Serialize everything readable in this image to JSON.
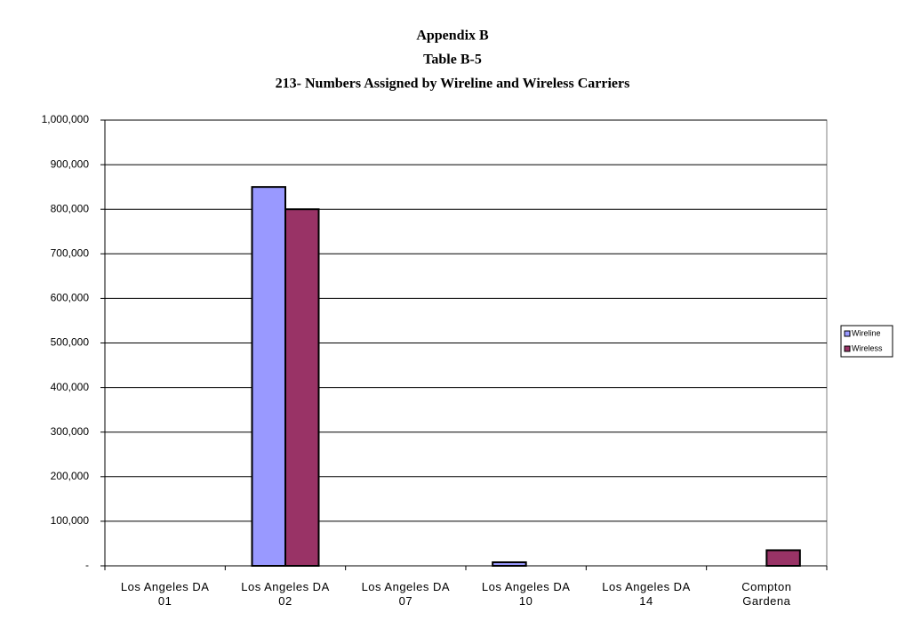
{
  "chart_data": {
    "type": "bar",
    "titles": [
      "Appendix B",
      "Table B-5",
      "213- Numbers Assigned by Wireline and Wireless Carriers"
    ],
    "categories": [
      "Los Angeles DA 01",
      "Los Angeles DA 02",
      "Los Angeles DA 07",
      "Los Angeles DA 10",
      "Los Angeles DA 14",
      "Compton Gardena"
    ],
    "series": [
      {
        "name": "Wireline",
        "color": "#9999ff",
        "values": [
          0,
          850000,
          0,
          8000,
          0,
          0
        ]
      },
      {
        "name": "Wireless",
        "color": "#993366",
        "values": [
          0,
          800000,
          0,
          0,
          0,
          35000
        ]
      }
    ],
    "ylim": [
      0,
      1000000
    ],
    "yticks": [
      {
        "value": 0,
        "label": "-"
      },
      {
        "value": 100000,
        "label": "100,000"
      },
      {
        "value": 200000,
        "label": "200,000"
      },
      {
        "value": 300000,
        "label": "300,000"
      },
      {
        "value": 400000,
        "label": "400,000"
      },
      {
        "value": 500000,
        "label": "500,000"
      },
      {
        "value": 600000,
        "label": "600,000"
      },
      {
        "value": 700000,
        "label": "700,000"
      },
      {
        "value": 800000,
        "label": "800,000"
      },
      {
        "value": 900000,
        "label": "900,000"
      },
      {
        "value": 1000000,
        "label": "1,000,000"
      }
    ],
    "grid": true,
    "legend": "right"
  }
}
